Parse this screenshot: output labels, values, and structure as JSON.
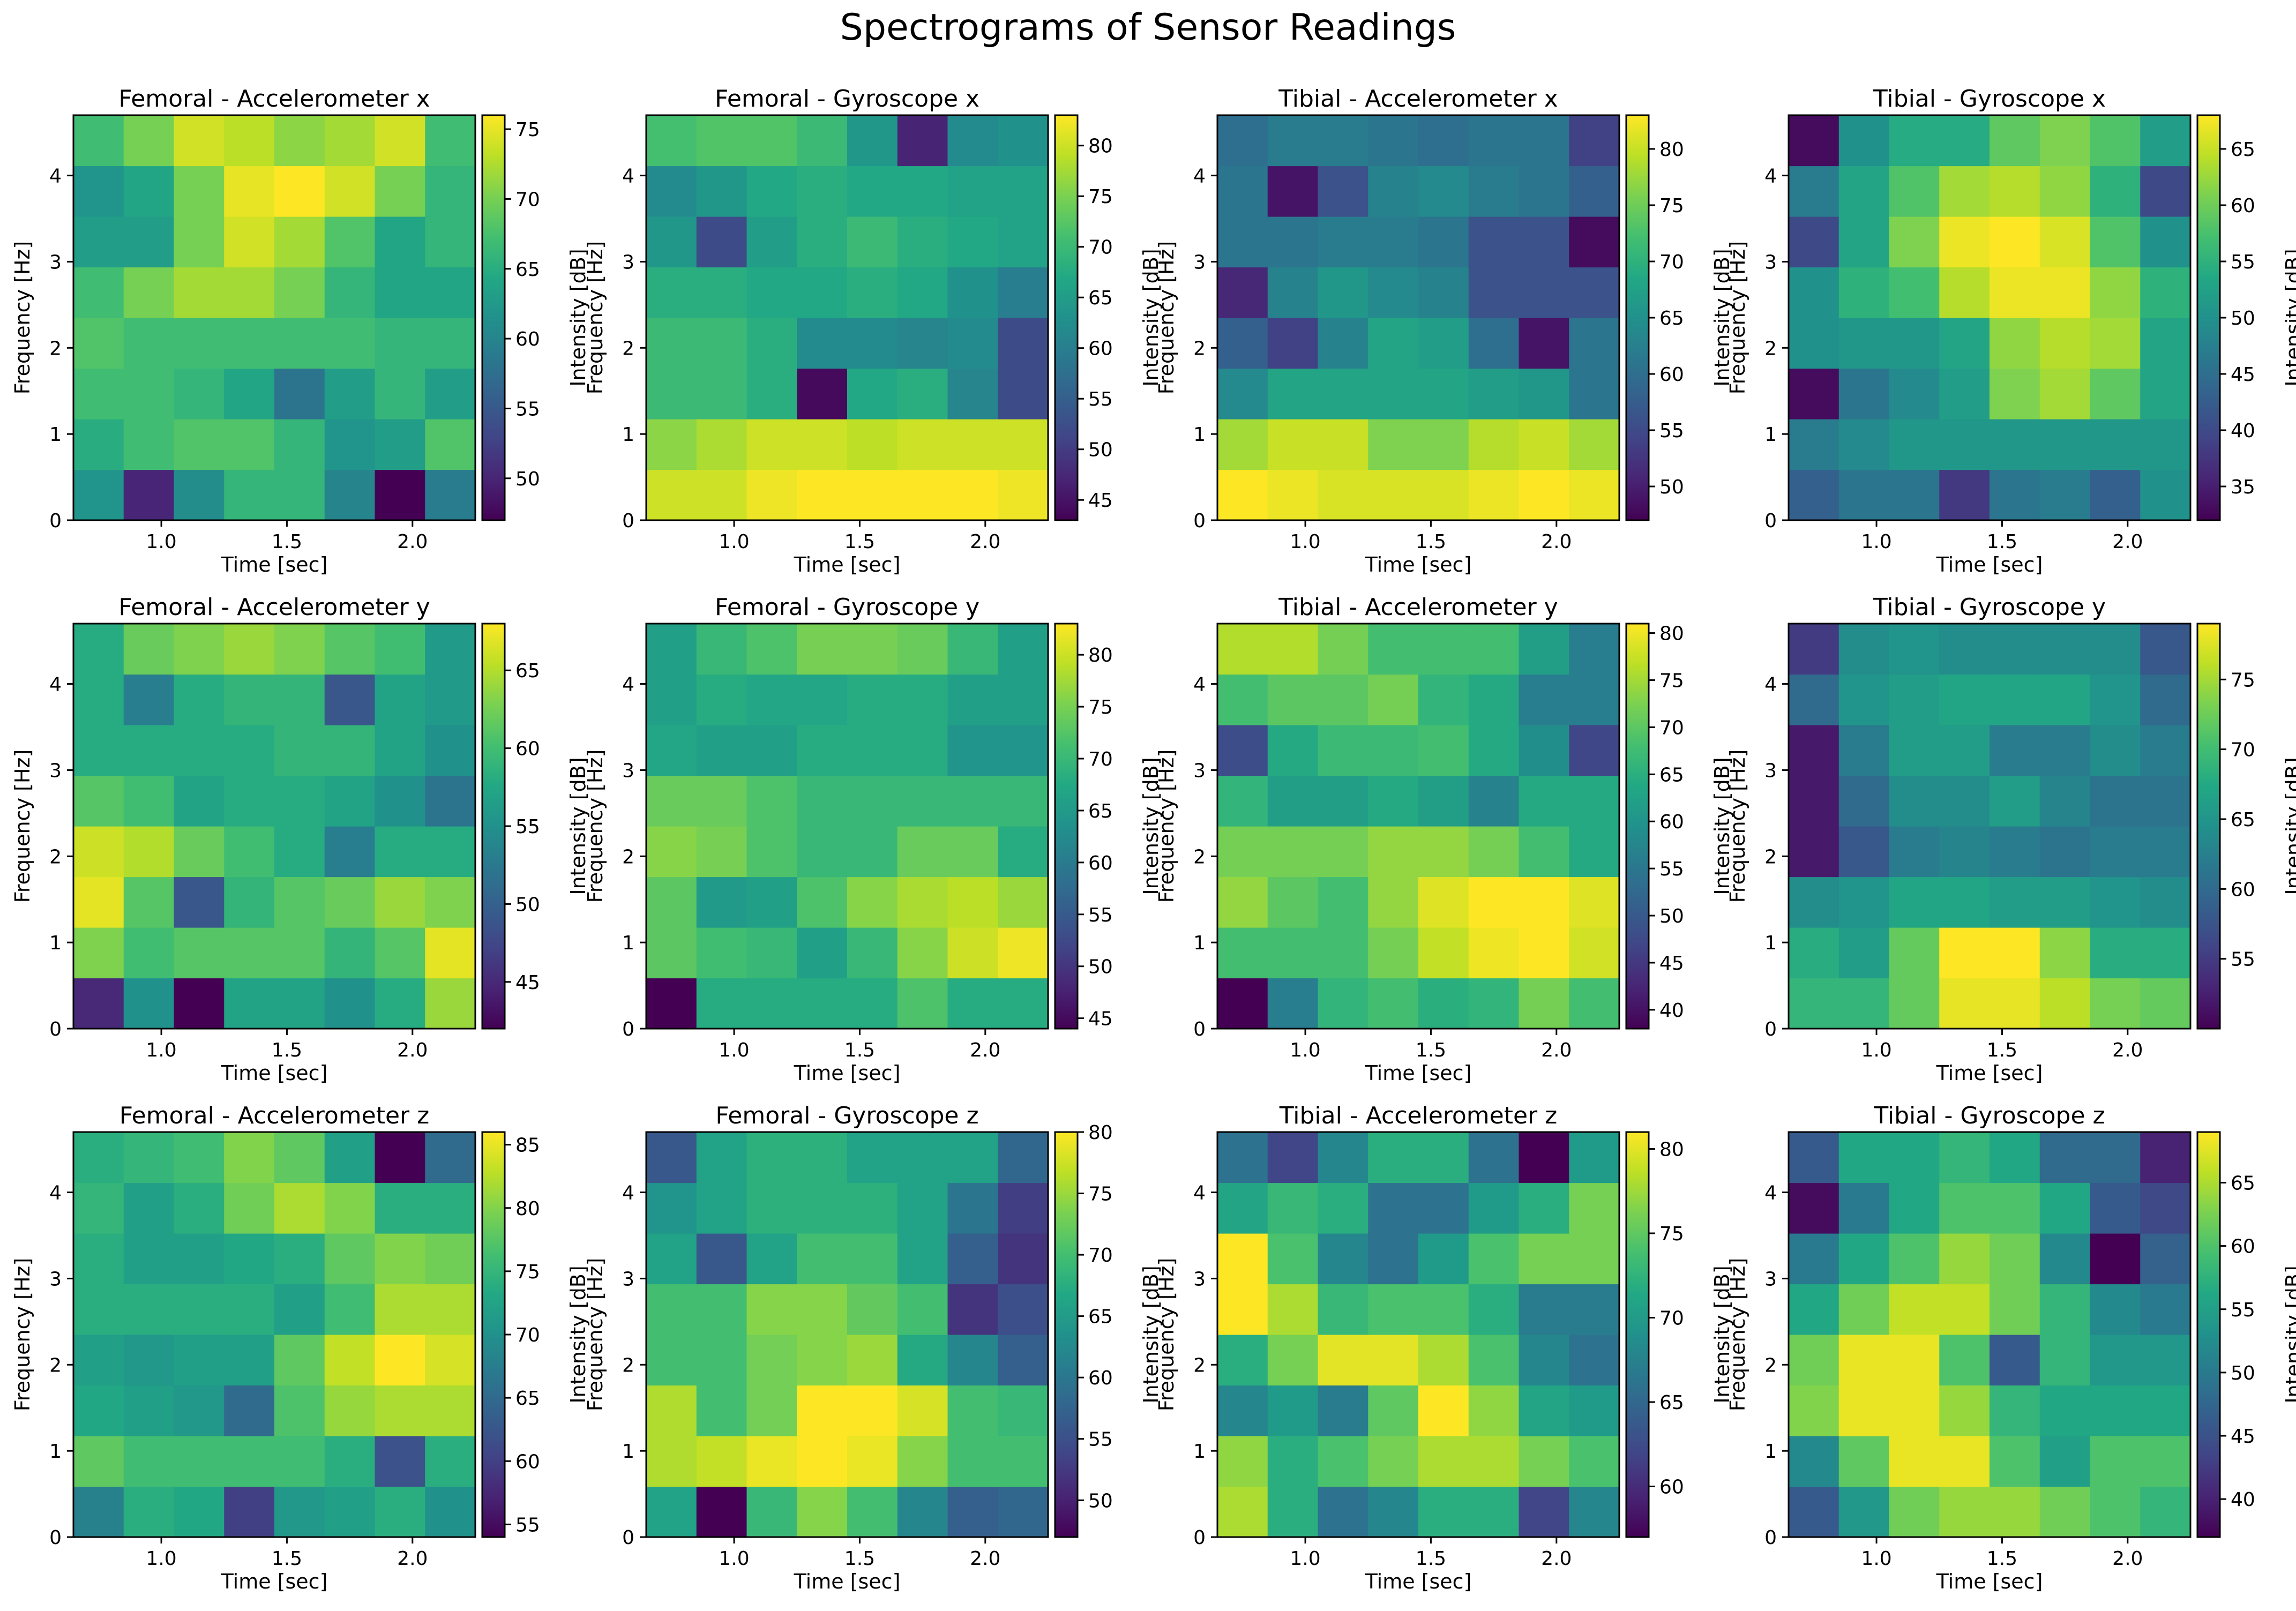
{
  "title": "Spectrograms of Sensor Readings",
  "colormap": "viridis",
  "chart_data": [
    {
      "type": "heatmap",
      "title": "Femoral - Accelerometer x",
      "xlabel": "Time [sec]",
      "ylabel": "Frequency [Hz]",
      "cbar_label": "Intensity [dB]",
      "x_ticks": [
        "1.0",
        "1.5",
        "2.0"
      ],
      "y_ticks": [
        "0",
        "1",
        "2",
        "3",
        "4"
      ],
      "cbar_ticks": [
        "50",
        "55",
        "60",
        "65",
        "70",
        "75"
      ],
      "vmin": 47,
      "vmax": 76,
      "values": [
        [
          62,
          50,
          61,
          66,
          66,
          60,
          47,
          59
        ],
        [
          65,
          67,
          68,
          68,
          66,
          62,
          63,
          68
        ],
        [
          67,
          67,
          66,
          64,
          58,
          63,
          66,
          63
        ],
        [
          68,
          67,
          67,
          67,
          67,
          67,
          66,
          66
        ],
        [
          67,
          70,
          72,
          72,
          70,
          66,
          64,
          64
        ],
        [
          63,
          63,
          70,
          74,
          72,
          68,
          64,
          66
        ],
        [
          62,
          64,
          70,
          75,
          76,
          74,
          70,
          66
        ],
        [
          67,
          70,
          74,
          73,
          71,
          72,
          74,
          67
        ]
      ]
    },
    {
      "type": "heatmap",
      "title": "Femoral - Gyroscope x",
      "xlabel": "Time [sec]",
      "ylabel": "Frequency [Hz]",
      "cbar_label": "Intensity [dB]",
      "x_ticks": [
        "1.0",
        "1.5",
        "2.0"
      ],
      "y_ticks": [
        "0",
        "1",
        "2",
        "3",
        "4"
      ],
      "cbar_ticks": [
        "45",
        "50",
        "55",
        "60",
        "65",
        "70",
        "75",
        "80"
      ],
      "vmin": 43,
      "vmax": 83,
      "values": [
        [
          80,
          80,
          82,
          83,
          83,
          83,
          83,
          82
        ],
        [
          76,
          78,
          80,
          80,
          79,
          80,
          80,
          80
        ],
        [
          70,
          70,
          68,
          44,
          67,
          68,
          61,
          52
        ],
        [
          70,
          70,
          68,
          62,
          62,
          61,
          62,
          52
        ],
        [
          68,
          68,
          67,
          67,
          68,
          67,
          63,
          60
        ],
        [
          64,
          52,
          65,
          68,
          70,
          68,
          67,
          66
        ],
        [
          62,
          64,
          67,
          68,
          67,
          67,
          66,
          66
        ],
        [
          71,
          72,
          72,
          70,
          64,
          47,
          62,
          63
        ]
      ]
    },
    {
      "type": "heatmap",
      "title": "Tibial - Accelerometer x",
      "xlabel": "Time [sec]",
      "ylabel": "Frequency [Hz]",
      "cbar_label": "Intensity [dB]",
      "x_ticks": [
        "1.0",
        "1.5",
        "2.0"
      ],
      "y_ticks": [
        "0",
        "1",
        "2",
        "3",
        "4"
      ],
      "cbar_ticks": [
        "50",
        "55",
        "60",
        "65",
        "70",
        "75",
        "80"
      ],
      "vmin": 47,
      "vmax": 83,
      "values": [
        [
          83,
          82,
          81,
          81,
          81,
          82,
          83,
          82
        ],
        [
          78,
          80,
          80,
          76,
          76,
          79,
          80,
          78
        ],
        [
          64,
          68,
          68,
          68,
          68,
          67,
          66,
          61
        ],
        [
          58,
          54,
          63,
          68,
          67,
          60,
          49,
          61
        ],
        [
          51,
          63,
          66,
          64,
          63,
          56,
          56,
          56
        ],
        [
          61,
          61,
          62,
          62,
          61,
          56,
          56,
          48
        ],
        [
          61,
          49,
          56,
          63,
          64,
          62,
          61,
          58
        ],
        [
          60,
          62,
          62,
          61,
          60,
          61,
          61,
          54
        ]
      ]
    },
    {
      "type": "heatmap",
      "title": "Tibial - Gyroscope x",
      "xlabel": "Time [sec]",
      "ylabel": "Frequency [Hz]",
      "cbar_label": "Intensity [dB]",
      "x_ticks": [
        "1.0",
        "1.5",
        "2.0"
      ],
      "y_ticks": [
        "0",
        "1",
        "2",
        "3",
        "4"
      ],
      "cbar_ticks": [
        "35",
        "40",
        "45",
        "50",
        "55",
        "60",
        "65"
      ],
      "vmin": 32,
      "vmax": 68,
      "values": [
        [
          43,
          46,
          46,
          38,
          46,
          47,
          43,
          50
        ],
        [
          47,
          49,
          51,
          51,
          51,
          51,
          51,
          51
        ],
        [
          33,
          46,
          49,
          52,
          61,
          63,
          59,
          53
        ],
        [
          50,
          51,
          51,
          53,
          62,
          64,
          63,
          53
        ],
        [
          50,
          55,
          57,
          64,
          67,
          67,
          62,
          55
        ],
        [
          40,
          53,
          61,
          67,
          68,
          66,
          58,
          50
        ],
        [
          47,
          53,
          58,
          63,
          64,
          62,
          55,
          40
        ],
        [
          33,
          50,
          54,
          54,
          59,
          61,
          58,
          52
        ]
      ]
    },
    {
      "type": "heatmap",
      "title": "Femoral - Accelerometer y",
      "xlabel": "Time [sec]",
      "ylabel": "Frequency [Hz]",
      "cbar_label": "Intensity [dB]",
      "x_ticks": [
        "1.0",
        "1.5",
        "2.0"
      ],
      "y_ticks": [
        "0",
        "1",
        "2",
        "3",
        "4"
      ],
      "cbar_ticks": [
        "45",
        "50",
        "55",
        "60",
        "65"
      ],
      "vmin": 42,
      "vmax": 68,
      "values": [
        [
          45,
          55,
          42,
          57,
          57,
          55,
          58,
          64
        ],
        [
          63,
          60,
          61,
          61,
          61,
          59,
          61,
          67
        ],
        [
          67,
          61,
          49,
          59,
          61,
          62,
          64,
          63
        ],
        [
          66,
          65,
          62,
          60,
          58,
          53,
          58,
          58
        ],
        [
          61,
          60,
          57,
          58,
          58,
          57,
          55,
          52
        ],
        [
          58,
          58,
          58,
          58,
          59,
          59,
          57,
          55
        ],
        [
          58,
          53,
          58,
          59,
          59,
          49,
          57,
          56
        ],
        [
          58,
          62,
          63,
          64,
          63,
          61,
          60,
          56
        ]
      ]
    },
    {
      "type": "heatmap",
      "title": "Femoral - Gyroscope y",
      "xlabel": "Time [sec]",
      "ylabel": "Frequency [Hz]",
      "cbar_label": "Intensity [dB]",
      "x_ticks": [
        "1.0",
        "1.5",
        "2.0"
      ],
      "y_ticks": [
        "0",
        "1",
        "2",
        "3",
        "4"
      ],
      "cbar_ticks": [
        "45",
        "50",
        "55",
        "60",
        "65",
        "70",
        "75",
        "80"
      ],
      "vmin": 44,
      "vmax": 83,
      "values": [
        [
          44,
          68,
          68,
          68,
          68,
          72,
          68,
          68
        ],
        [
          73,
          71,
          70,
          66,
          70,
          76,
          80,
          82
        ],
        [
          73,
          65,
          66,
          72,
          76,
          78,
          79,
          77
        ],
        [
          76,
          75,
          72,
          70,
          70,
          74,
          74,
          68
        ],
        [
          74,
          74,
          72,
          70,
          70,
          70,
          70,
          70
        ],
        [
          67,
          66,
          66,
          68,
          68,
          68,
          64,
          64
        ],
        [
          66,
          68,
          67,
          67,
          68,
          68,
          66,
          66
        ],
        [
          66,
          70,
          72,
          75,
          75,
          74,
          70,
          66
        ]
      ]
    },
    {
      "type": "heatmap",
      "title": "Tibial - Accelerometer y",
      "xlabel": "Time [sec]",
      "ylabel": "Frequency [Hz]",
      "cbar_label": "Intensity [dB]",
      "x_ticks": [
        "1.0",
        "1.5",
        "2.0"
      ],
      "y_ticks": [
        "0",
        "1",
        "2",
        "3",
        "4"
      ],
      "cbar_ticks": [
        "40",
        "45",
        "50",
        "55",
        "60",
        "65",
        "70",
        "75",
        "80"
      ],
      "vmin": 38,
      "vmax": 81,
      "values": [
        [
          38,
          56,
          66,
          68,
          65,
          66,
          72,
          68
        ],
        [
          68,
          68,
          68,
          72,
          77,
          80,
          81,
          78
        ],
        [
          74,
          70,
          68,
          74,
          79,
          81,
          81,
          79
        ],
        [
          72,
          72,
          72,
          74,
          74,
          72,
          68,
          64
        ],
        [
          66,
          62,
          62,
          64,
          62,
          57,
          64,
          64
        ],
        [
          48,
          64,
          67,
          67,
          68,
          64,
          59,
          47
        ],
        [
          68,
          70,
          70,
          72,
          66,
          64,
          56,
          56
        ],
        [
          76,
          76,
          72,
          68,
          68,
          68,
          62,
          56
        ]
      ]
    },
    {
      "type": "heatmap",
      "title": "Tibial - Gyroscope y",
      "xlabel": "Time [sec]",
      "ylabel": "Frequency [Hz]",
      "cbar_label": "Intensity [dB]",
      "x_ticks": [
        "1.0",
        "1.5",
        "2.0"
      ],
      "y_ticks": [
        "0",
        "1",
        "2",
        "3",
        "4"
      ],
      "cbar_ticks": [
        "55",
        "60",
        "65",
        "70",
        "75"
      ],
      "vmin": 50,
      "vmax": 79,
      "values": [
        [
          69,
          69,
          72,
          78,
          78,
          76,
          73,
          72
        ],
        [
          68,
          66,
          72,
          79,
          79,
          74,
          68,
          68
        ],
        [
          64,
          65,
          67,
          67,
          66,
          66,
          65,
          64
        ],
        [
          52,
          58,
          62,
          63,
          62,
          61,
          62,
          62
        ],
        [
          52,
          60,
          64,
          64,
          66,
          63,
          61,
          61
        ],
        [
          52,
          62,
          66,
          66,
          62,
          62,
          64,
          62
        ],
        [
          60,
          65,
          66,
          67,
          67,
          67,
          65,
          60
        ],
        [
          55,
          64,
          65,
          64,
          64,
          64,
          64,
          58
        ]
      ]
    },
    {
      "type": "heatmap",
      "title": "Femoral - Accelerometer z",
      "xlabel": "Time [sec]",
      "ylabel": "Frequency [Hz]",
      "cbar_label": "Intensity [dB]",
      "x_ticks": [
        "1.0",
        "1.5",
        "2.0"
      ],
      "y_ticks": [
        "0",
        "1",
        "2",
        "3",
        "4"
      ],
      "cbar_ticks": [
        "55",
        "60",
        "65",
        "70",
        "75",
        "80",
        "85"
      ],
      "vmin": 54,
      "vmax": 86,
      "values": [
        [
          68,
          74,
          73,
          60,
          71,
          72,
          74,
          70
        ],
        [
          78,
          76,
          76,
          76,
          76,
          74,
          62,
          74
        ],
        [
          73,
          72,
          71,
          65,
          77,
          81,
          82,
          82
        ],
        [
          72,
          71,
          72,
          72,
          78,
          83,
          86,
          84
        ],
        [
          74,
          74,
          74,
          74,
          72,
          76,
          82,
          82
        ],
        [
          74,
          72,
          72,
          73,
          74,
          78,
          80,
          79
        ],
        [
          75,
          72,
          74,
          79,
          82,
          80,
          74,
          74
        ],
        [
          74,
          75,
          76,
          80,
          78,
          72,
          54,
          65
        ]
      ]
    },
    {
      "type": "heatmap",
      "title": "Femoral - Gyroscope z",
      "xlabel": "Time [sec]",
      "ylabel": "Frequency [Hz]",
      "cbar_label": "Intensity [dB]",
      "x_ticks": [
        "1.0",
        "1.5",
        "2.0"
      ],
      "y_ticks": [
        "0",
        "1",
        "2",
        "3",
        "4"
      ],
      "cbar_ticks": [
        "50",
        "55",
        "60",
        "65",
        "70",
        "75",
        "80"
      ],
      "vmin": 47,
      "vmax": 80,
      "values": [
        [
          66,
          47,
          69,
          74,
          70,
          62,
          57,
          58
        ],
        [
          76,
          77,
          79,
          80,
          79,
          74,
          70,
          70
        ],
        [
          76,
          70,
          73,
          80,
          80,
          78,
          70,
          69
        ],
        [
          70,
          70,
          73,
          74,
          75,
          67,
          62,
          57
        ],
        [
          70,
          70,
          74,
          74,
          72,
          70,
          52,
          55
        ],
        [
          66,
          56,
          66,
          70,
          70,
          66,
          57,
          52
        ],
        [
          64,
          66,
          68,
          68,
          68,
          66,
          60,
          53
        ],
        [
          56,
          66,
          68,
          68,
          66,
          66,
          66,
          58
        ]
      ]
    },
    {
      "type": "heatmap",
      "title": "Tibial - Accelerometer z",
      "xlabel": "Time [sec]",
      "ylabel": "Frequency [Hz]",
      "cbar_label": "Intensity [dB]",
      "x_ticks": [
        "1.0",
        "1.5",
        "2.0"
      ],
      "y_ticks": [
        "0",
        "1",
        "2",
        "3",
        "4"
      ],
      "cbar_ticks": [
        "60",
        "65",
        "70",
        "75",
        "80"
      ],
      "vmin": 57,
      "vmax": 81,
      "values": [
        [
          78,
          72,
          66,
          68,
          72,
          72,
          62,
          68
        ],
        [
          77,
          72,
          74,
          76,
          78,
          78,
          76,
          74
        ],
        [
          68,
          70,
          67,
          75,
          81,
          77,
          71,
          70
        ],
        [
          72,
          76,
          80,
          80,
          78,
          74,
          68,
          66
        ],
        [
          81,
          78,
          73,
          74,
          74,
          72,
          67,
          67
        ],
        [
          81,
          74,
          68,
          66,
          70,
          74,
          76,
          76
        ],
        [
          71,
          73,
          72,
          66,
          66,
          70,
          72,
          76
        ],
        [
          66,
          62,
          68,
          72,
          72,
          66,
          57,
          70
        ]
      ]
    },
    {
      "type": "heatmap",
      "title": "Tibial - Gyroscope z",
      "xlabel": "Time [sec]",
      "ylabel": "Frequency [Hz]",
      "cbar_label": "Intensity [dB]",
      "x_ticks": [
        "1.0",
        "1.5",
        "2.0"
      ],
      "y_ticks": [
        "0",
        "1",
        "2",
        "3",
        "4"
      ],
      "cbar_ticks": [
        "40",
        "45",
        "50",
        "55",
        "60",
        "65"
      ],
      "vmin": 37,
      "vmax": 69,
      "values": [
        [
          46,
          54,
          62,
          64,
          64,
          62,
          60,
          58
        ],
        [
          52,
          61,
          68,
          68,
          60,
          55,
          60,
          60
        ],
        [
          63,
          68,
          68,
          64,
          58,
          56,
          56,
          56
        ],
        [
          62,
          68,
          68,
          60,
          46,
          58,
          54,
          54
        ],
        [
          56,
          62,
          66,
          66,
          62,
          58,
          52,
          50
        ],
        [
          50,
          56,
          60,
          64,
          62,
          52,
          37,
          47
        ],
        [
          38,
          50,
          56,
          60,
          60,
          56,
          46,
          44
        ],
        [
          46,
          56,
          56,
          58,
          56,
          48,
          48,
          40
        ]
      ]
    }
  ]
}
